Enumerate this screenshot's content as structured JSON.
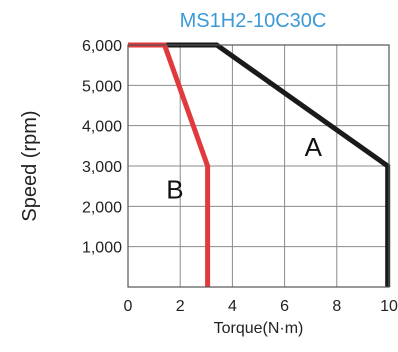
{
  "chart_data": {
    "type": "line",
    "title": "MS1H2-10C30C",
    "xlabel": "Torque(N·m)",
    "ylabel": "Speed (rpm)",
    "xlim": [
      0,
      10
    ],
    "ylim": [
      0,
      6000
    ],
    "x_ticks": [
      0,
      2,
      4,
      6,
      8,
      10
    ],
    "x_tick_labels": [
      "0",
      "2",
      "4",
      "6",
      "8",
      "10"
    ],
    "y_ticks": [
      1000,
      2000,
      3000,
      4000,
      5000,
      6000
    ],
    "y_tick_labels": [
      "1,000",
      "2,000",
      "3,000",
      "4,000",
      "5,000",
      "6,000"
    ],
    "grid": true,
    "series": [
      {
        "name": "A",
        "color": "#1a1a1a",
        "points": [
          [
            0,
            6000
          ],
          [
            3.4,
            6000
          ],
          [
            9.95,
            3000
          ],
          [
            9.95,
            0
          ]
        ],
        "label_at": [
          7.1,
          3250
        ]
      },
      {
        "name": "B",
        "color": "#e03a3e",
        "points": [
          [
            0,
            6000
          ],
          [
            1.4,
            6000
          ],
          [
            3.05,
            3000
          ],
          [
            3.05,
            0
          ]
        ],
        "label_at": [
          1.8,
          2200
        ]
      }
    ],
    "title_color": "#3a9ad9"
  }
}
